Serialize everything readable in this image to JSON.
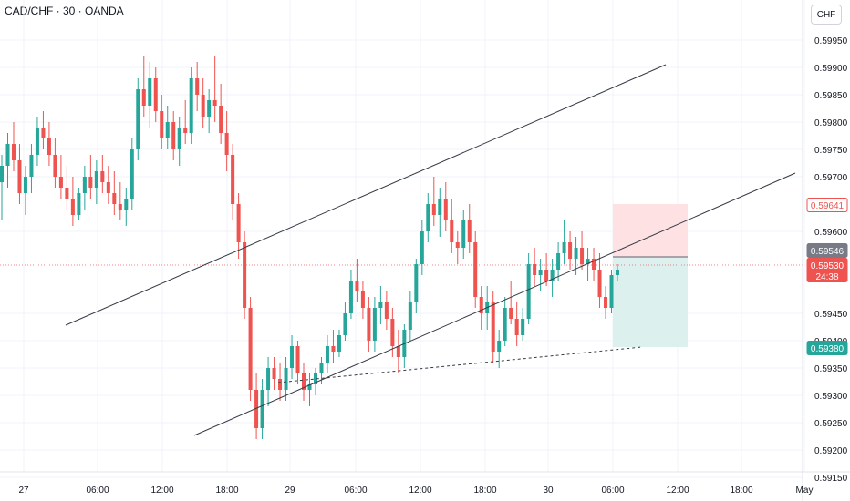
{
  "title": "CAD/CHF · 30 · OANDA",
  "currency_button": "CHF",
  "colors": {
    "up": "#26a69a",
    "down": "#ef5350",
    "grid": "#f0f3fa",
    "stop_zone": "#fde1e3",
    "target_zone": "#dcf1ee"
  },
  "chart_data": {
    "type": "candlestick",
    "ylim": [
      0.5913,
      0.5998
    ],
    "y_ticks": [
      "0.59950",
      "0.59900",
      "0.59850",
      "0.59800",
      "0.59750",
      "0.59700",
      "0.59600",
      "0.59450",
      "0.59400",
      "0.59350",
      "0.59300",
      "0.59250",
      "0.59200",
      "0.59150"
    ],
    "x_ticks": [
      "27",
      "06:00",
      "12:00",
      "18:00",
      "29",
      "06:00",
      "12:00",
      "18:00",
      "30",
      "06:00",
      "12:00",
      "18:00",
      "May"
    ],
    "price_tags": [
      {
        "value": "0.59641",
        "kind": "stop"
      },
      {
        "value": "0.59546",
        "kind": "entry"
      },
      {
        "value": "0.59530",
        "kind": "last"
      },
      {
        "value": "0.59380",
        "kind": "target"
      }
    ],
    "countdown": "24:38",
    "ohlc": [
      [
        0.5969,
        0.5974,
        0.5962,
        0.5972
      ],
      [
        0.5972,
        0.5978,
        0.5968,
        0.5976
      ],
      [
        0.5976,
        0.598,
        0.5971,
        0.5973
      ],
      [
        0.5973,
        0.5976,
        0.5965,
        0.5967
      ],
      [
        0.5967,
        0.5972,
        0.5963,
        0.597
      ],
      [
        0.597,
        0.5976,
        0.5967,
        0.5974
      ],
      [
        0.5974,
        0.5981,
        0.5972,
        0.5979
      ],
      [
        0.5979,
        0.5982,
        0.5975,
        0.5977
      ],
      [
        0.5977,
        0.598,
        0.5972,
        0.5974
      ],
      [
        0.5974,
        0.5977,
        0.5968,
        0.597
      ],
      [
        0.597,
        0.5974,
        0.5966,
        0.5968
      ],
      [
        0.5968,
        0.5972,
        0.5964,
        0.5966
      ],
      [
        0.5966,
        0.597,
        0.5961,
        0.5963
      ],
      [
        0.5963,
        0.5968,
        0.5962,
        0.5967
      ],
      [
        0.5967,
        0.5972,
        0.5964,
        0.597
      ],
      [
        0.597,
        0.5974,
        0.5966,
        0.5968
      ],
      [
        0.5968,
        0.5973,
        0.5965,
        0.5971
      ],
      [
        0.5971,
        0.5974,
        0.5967,
        0.5969
      ],
      [
        0.5969,
        0.5972,
        0.5965,
        0.5967
      ],
      [
        0.5967,
        0.5971,
        0.5963,
        0.5965
      ],
      [
        0.5965,
        0.5969,
        0.5962,
        0.5964
      ],
      [
        0.5964,
        0.5968,
        0.5961,
        0.5966
      ],
      [
        0.5966,
        0.5977,
        0.5964,
        0.5975
      ],
      [
        0.5975,
        0.5988,
        0.5973,
        0.5986
      ],
      [
        0.5986,
        0.5992,
        0.5981,
        0.5983
      ],
      [
        0.5983,
        0.5991,
        0.5979,
        0.5988
      ],
      [
        0.5988,
        0.599,
        0.598,
        0.5982
      ],
      [
        0.5982,
        0.5985,
        0.5975,
        0.5977
      ],
      [
        0.5977,
        0.5983,
        0.5975,
        0.598
      ],
      [
        0.598,
        0.5982,
        0.5973,
        0.5975
      ],
      [
        0.5975,
        0.5981,
        0.5972,
        0.5979
      ],
      [
        0.5979,
        0.5984,
        0.5976,
        0.5978
      ],
      [
        0.5978,
        0.599,
        0.5976,
        0.5988
      ],
      [
        0.5988,
        0.5991,
        0.5982,
        0.5985
      ],
      [
        0.5985,
        0.5988,
        0.5979,
        0.5981
      ],
      [
        0.5981,
        0.5986,
        0.5978,
        0.5984
      ],
      [
        0.5984,
        0.5992,
        0.598,
        0.5983
      ],
      [
        0.5983,
        0.5987,
        0.5976,
        0.5978
      ],
      [
        0.5978,
        0.5982,
        0.5971,
        0.5974
      ],
      [
        0.5974,
        0.5976,
        0.5962,
        0.5965
      ],
      [
        0.5965,
        0.5967,
        0.5955,
        0.5958
      ],
      [
        0.5958,
        0.596,
        0.5944,
        0.5946
      ],
      [
        0.5946,
        0.5948,
        0.5929,
        0.5931
      ],
      [
        0.5931,
        0.5934,
        0.5922,
        0.5924
      ],
      [
        0.5924,
        0.5933,
        0.5922,
        0.5931
      ],
      [
        0.5931,
        0.5937,
        0.5928,
        0.5935
      ],
      [
        0.5935,
        0.5937,
        0.5931,
        0.5933
      ],
      [
        0.5933,
        0.5936,
        0.5929,
        0.5931
      ],
      [
        0.5931,
        0.5937,
        0.5929,
        0.5935
      ],
      [
        0.5935,
        0.5941,
        0.5933,
        0.5939
      ],
      [
        0.5939,
        0.594,
        0.5932,
        0.5934
      ],
      [
        0.5934,
        0.5936,
        0.5929,
        0.5931
      ],
      [
        0.5931,
        0.5934,
        0.5928,
        0.5932
      ],
      [
        0.5932,
        0.5935,
        0.593,
        0.5934
      ],
      [
        0.5934,
        0.5937,
        0.5932,
        0.5936
      ],
      [
        0.5936,
        0.5941,
        0.5934,
        0.5939
      ],
      [
        0.5939,
        0.5942,
        0.5936,
        0.5938
      ],
      [
        0.5938,
        0.5942,
        0.5937,
        0.5941
      ],
      [
        0.5941,
        0.5947,
        0.594,
        0.5945
      ],
      [
        0.5945,
        0.5953,
        0.5944,
        0.5951
      ],
      [
        0.5951,
        0.5955,
        0.5947,
        0.5949
      ],
      [
        0.5949,
        0.5951,
        0.5944,
        0.5946
      ],
      [
        0.5946,
        0.5948,
        0.5938,
        0.594
      ],
      [
        0.594,
        0.5948,
        0.5938,
        0.5946
      ],
      [
        0.5946,
        0.595,
        0.5943,
        0.5947
      ],
      [
        0.5947,
        0.5949,
        0.5942,
        0.5944
      ],
      [
        0.5944,
        0.5946,
        0.5937,
        0.5939
      ],
      [
        0.5939,
        0.5942,
        0.5934,
        0.5937
      ],
      [
        0.5937,
        0.5943,
        0.5935,
        0.5942
      ],
      [
        0.5942,
        0.5949,
        0.594,
        0.5947
      ],
      [
        0.5947,
        0.5955,
        0.5945,
        0.5954
      ],
      [
        0.5954,
        0.5962,
        0.5952,
        0.596
      ],
      [
        0.596,
        0.5967,
        0.5958,
        0.5965
      ],
      [
        0.5965,
        0.597,
        0.5961,
        0.5963
      ],
      [
        0.5963,
        0.5968,
        0.5959,
        0.5966
      ],
      [
        0.5966,
        0.5969,
        0.596,
        0.5962
      ],
      [
        0.5962,
        0.5966,
        0.5956,
        0.5958
      ],
      [
        0.5958,
        0.596,
        0.5954,
        0.5957
      ],
      [
        0.5957,
        0.5964,
        0.5955,
        0.5962
      ],
      [
        0.5962,
        0.5965,
        0.5956,
        0.5958
      ],
      [
        0.5958,
        0.596,
        0.5946,
        0.5948
      ],
      [
        0.5948,
        0.595,
        0.5942,
        0.5945
      ],
      [
        0.5945,
        0.595,
        0.5942,
        0.5947
      ],
      [
        0.5947,
        0.5949,
        0.5936,
        0.5938
      ],
      [
        0.5938,
        0.5942,
        0.5935,
        0.594
      ],
      [
        0.594,
        0.5948,
        0.5939,
        0.5946
      ],
      [
        0.5946,
        0.5951,
        0.5943,
        0.5944
      ],
      [
        0.5944,
        0.5947,
        0.5939,
        0.5941
      ],
      [
        0.5941,
        0.5946,
        0.594,
        0.5944
      ],
      [
        0.5944,
        0.5956,
        0.5943,
        0.5954
      ],
      [
        0.5954,
        0.5957,
        0.595,
        0.5952
      ],
      [
        0.5952,
        0.5955,
        0.5949,
        0.5953
      ],
      [
        0.5953,
        0.5956,
        0.595,
        0.5951
      ],
      [
        0.5951,
        0.5955,
        0.5948,
        0.5953
      ],
      [
        0.5953,
        0.5958,
        0.5951,
        0.5956
      ],
      [
        0.5956,
        0.5962,
        0.5954,
        0.5958
      ],
      [
        0.5958,
        0.596,
        0.5953,
        0.5955
      ],
      [
        0.5955,
        0.5959,
        0.5952,
        0.5957
      ],
      [
        0.5957,
        0.596,
        0.5953,
        0.5954
      ],
      [
        0.5954,
        0.5957,
        0.5951,
        0.5955
      ],
      [
        0.5955,
        0.5957,
        0.5951,
        0.5953
      ],
      [
        0.5953,
        0.5956,
        0.5946,
        0.5948
      ],
      [
        0.5948,
        0.595,
        0.5944,
        0.5946
      ],
      [
        0.5946,
        0.5953,
        0.5945,
        0.5952
      ],
      [
        0.5952,
        0.5954,
        0.5951,
        0.5953
      ]
    ]
  }
}
